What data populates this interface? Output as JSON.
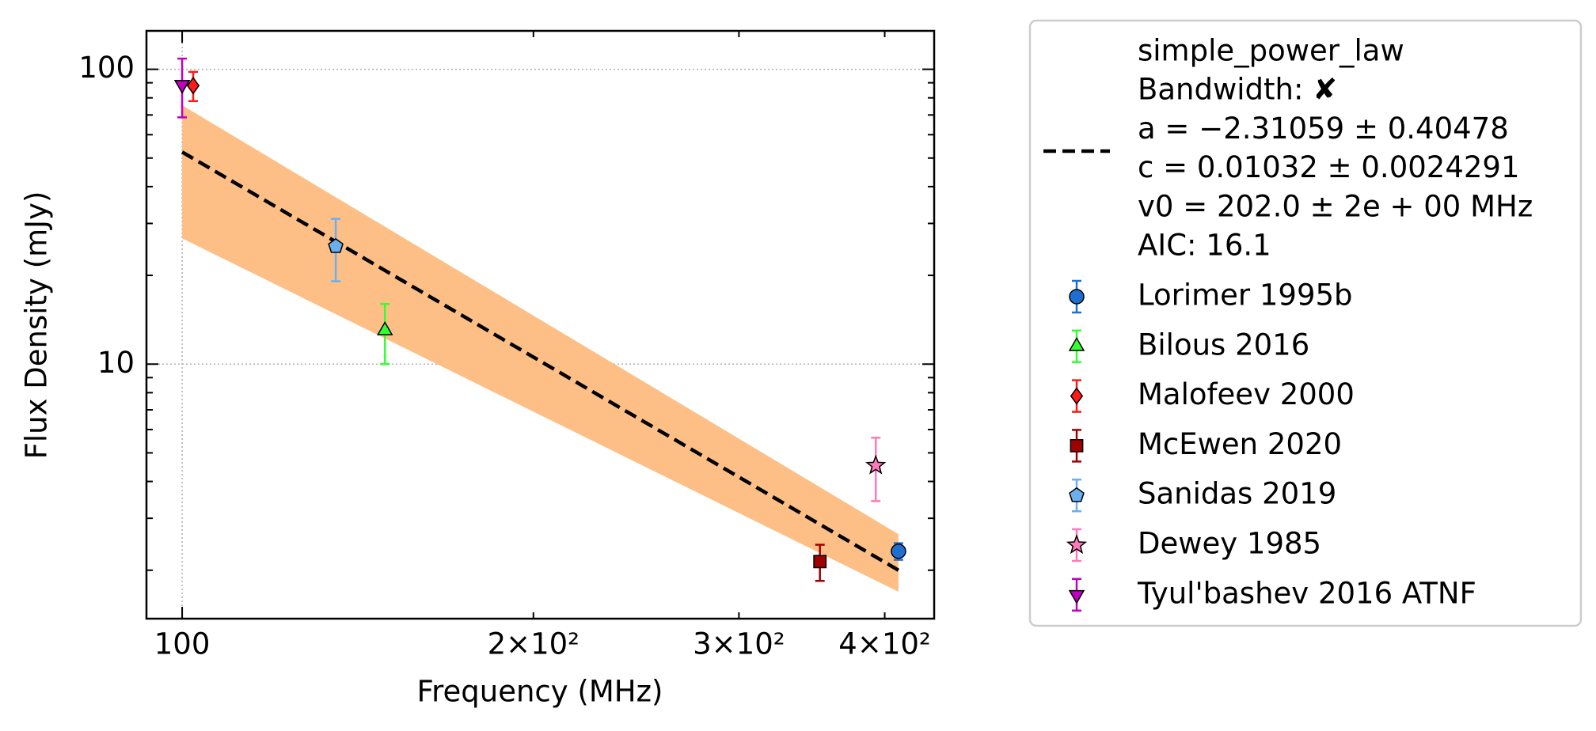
{
  "chart_data": {
    "type": "scatter",
    "xlabel": "Frequency (MHz)",
    "ylabel": "Flux Density (mJy)",
    "log_x": true,
    "log_y": true,
    "xlim": [
      93.2,
      441
    ],
    "ylim": [
      1.37,
      135
    ],
    "xticks": [
      100
    ],
    "xminorticks": [
      {
        "value": 200,
        "label": "2×10²"
      },
      {
        "value": 300,
        "label": "3×10²"
      },
      {
        "value": 400,
        "label": "4×10²"
      }
    ],
    "yticks": [
      10,
      100
    ],
    "yminorticks": [
      2,
      3,
      4,
      5,
      6,
      7,
      8,
      9,
      20,
      30,
      40,
      50,
      60,
      70,
      80,
      90
    ],
    "grid": true,
    "legend": "outside-right",
    "fit": {
      "label_lines": [
        "simple_power_law",
        "Bandwidth: ✘",
        "a = −2.31059 ± 0.40478",
        "c = 0.01032 ± 0.0024291",
        "v0 = 202.0 ± 2e + 00 MHz",
        "AIC: 16.1"
      ],
      "color": "#000000",
      "band_color": "#fdbf86",
      "x": [
        100,
        411
      ],
      "values": [
        52.4,
        2.0
      ],
      "band_lower": [
        26.7,
        1.69
      ],
      "band_upper": [
        75.5,
        2.65
      ]
    },
    "series": [
      {
        "name": "Lorimer 1995b",
        "color": "#1f6fd1",
        "marker": "circle",
        "x": [
          411
        ],
        "values": [
          2.32
        ],
        "errors": [
          0.15
        ]
      },
      {
        "name": "Bilous 2016",
        "color": "#33ff33",
        "marker": "triangle-up",
        "x": [
          149.2
        ],
        "values": [
          13.0
        ],
        "errors": [
          3.0
        ]
      },
      {
        "name": "Malofeev 2000",
        "color": "#ff1a1a",
        "marker": "diamond",
        "x": [
          102.2
        ],
        "values": [
          88.0
        ],
        "errors": [
          10.0
        ]
      },
      {
        "name": "McEwen 2020",
        "color": "#a00000",
        "marker": "square",
        "x": [
          352
        ],
        "values": [
          2.14
        ],
        "errors": [
          0.3
        ]
      },
      {
        "name": "Sanidas 2019",
        "color": "#6aaff0",
        "marker": "pentagon",
        "x": [
          135.4
        ],
        "values": [
          25.1
        ],
        "errors": [
          6.0
        ]
      },
      {
        "name": "Dewey 1985",
        "color": "#ff7ab8",
        "marker": "star",
        "x": [
          393
        ],
        "values": [
          4.53
        ],
        "errors": [
          1.1
        ]
      },
      {
        "name": "Tyul'bashev 2016 ATNF",
        "color": "#c000c0",
        "marker": "triangle-down",
        "x": [
          100
        ],
        "values": [
          88.7
        ],
        "errors": [
          20.0
        ]
      }
    ]
  }
}
